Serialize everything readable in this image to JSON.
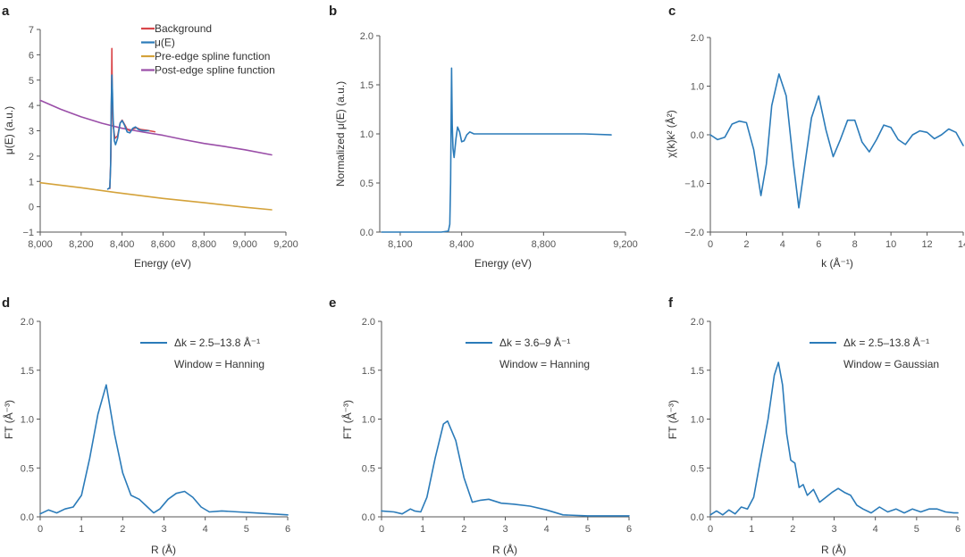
{
  "figure": {
    "colors": {
      "blue": "#2b7bb9",
      "red": "#d9464a",
      "orange": "#d4a23a",
      "purple": "#9a4ea8"
    }
  },
  "chart_data": [
    {
      "id": "a",
      "letter": "a",
      "type": "line",
      "xlabel": "Energy (eV)",
      "ylabel": "μ(E) (a.u.)",
      "xlim": [
        8000,
        9200
      ],
      "ylim": [
        -1,
        7
      ],
      "xticks": [
        8000,
        8200,
        8400,
        8600,
        8800,
        9000,
        9200
      ],
      "xtick_labels": [
        "8,000",
        "8,200",
        "8,400",
        "8,600",
        "8,800",
        "9,000",
        "9,200"
      ],
      "yticks": [
        -1,
        0,
        1,
        2,
        3,
        4,
        5,
        6,
        7
      ],
      "ytick_labels": [
        "−1",
        "0",
        "1",
        "2",
        "3",
        "4",
        "5",
        "6",
        "7"
      ],
      "legend": [
        {
          "label": "Background",
          "color": "#d9464a"
        },
        {
          "label": "μ(E)",
          "color": "#2b7bb9"
        },
        {
          "label": "Pre-edge spline function",
          "color": "#d4a23a"
        },
        {
          "label": "Post-edge spline function",
          "color": "#9a4ea8"
        }
      ],
      "series": [
        {
          "name": "Pre-edge spline function",
          "color": "#d4a23a",
          "points": [
            [
              8000,
              0.95
            ],
            [
              8200,
              0.75
            ],
            [
              8400,
              0.53
            ],
            [
              8600,
              0.33
            ],
            [
              8800,
              0.16
            ],
            [
              9000,
              -0.02
            ],
            [
              9130,
              -0.12
            ]
          ]
        },
        {
          "name": "Post-edge spline function",
          "color": "#9a4ea8",
          "points": [
            [
              8000,
              4.2
            ],
            [
              8100,
              3.85
            ],
            [
              8200,
              3.55
            ],
            [
              8300,
              3.3
            ],
            [
              8400,
              3.1
            ],
            [
              8500,
              2.95
            ],
            [
              8600,
              2.82
            ],
            [
              8700,
              2.65
            ],
            [
              8800,
              2.5
            ],
            [
              8900,
              2.38
            ],
            [
              9000,
              2.25
            ],
            [
              9130,
              2.05
            ]
          ]
        },
        {
          "name": "Background",
          "color": "#d9464a",
          "points": [
            [
              8340,
              0.72
            ],
            [
              8345,
              2.0
            ],
            [
              8348,
              4.5
            ],
            [
              8350,
              6.25
            ],
            [
              8352,
              4.2
            ],
            [
              8356,
              3.2
            ],
            [
              8365,
              2.7
            ],
            [
              8378,
              2.8
            ],
            [
              8390,
              3.3
            ],
            [
              8400,
              3.42
            ],
            [
              8412,
              3.25
            ],
            [
              8425,
              3.05
            ],
            [
              8440,
              3.0
            ],
            [
              8455,
              3.08
            ],
            [
              8470,
              3.12
            ],
            [
              8490,
              3.05
            ],
            [
              8520,
              3.02
            ],
            [
              8560,
              2.96
            ]
          ]
        },
        {
          "name": "μ(E)",
          "color": "#2b7bb9",
          "points": [
            [
              8330,
              0.7
            ],
            [
              8340,
              0.75
            ],
            [
              8344,
              1.6
            ],
            [
              8347,
              4.0
            ],
            [
              8350,
              5.2
            ],
            [
              8353,
              4.5
            ],
            [
              8356,
              3.5
            ],
            [
              8362,
              2.6
            ],
            [
              8368,
              2.45
            ],
            [
              8378,
              2.7
            ],
            [
              8390,
              3.3
            ],
            [
              8400,
              3.4
            ],
            [
              8412,
              3.22
            ],
            [
              8425,
              2.95
            ],
            [
              8438,
              2.92
            ],
            [
              8452,
              3.1
            ],
            [
              8465,
              3.15
            ],
            [
              8480,
              3.05
            ],
            [
              8500,
              3.0
            ],
            [
              8530,
              3.0
            ]
          ]
        }
      ]
    },
    {
      "id": "b",
      "letter": "b",
      "type": "line",
      "xlabel": "Energy (eV)",
      "ylabel": "Normalized μ(E) (a.u.)",
      "xlim": [
        8000,
        9200
      ],
      "ylim": [
        0,
        2.0
      ],
      "xticks": [
        8100,
        8400,
        8800,
        9200
      ],
      "xtick_labels": [
        "8,100",
        "8,400",
        "8,800",
        "9,200"
      ],
      "yticks": [
        0,
        0.5,
        1.0,
        1.5,
        2.0
      ],
      "ytick_labels": [
        "0.0",
        "0.5",
        "1.0",
        "1.5",
        "2.0"
      ],
      "series": [
        {
          "name": "Normalized μ(E)",
          "color": "#2b7bb9",
          "points": [
            [
              8010,
              0.0
            ],
            [
              8300,
              0.0
            ],
            [
              8335,
              0.01
            ],
            [
              8342,
              0.08
            ],
            [
              8346,
              0.5
            ],
            [
              8349,
              1.25
            ],
            [
              8351,
              1.67
            ],
            [
              8354,
              1.1
            ],
            [
              8358,
              0.85
            ],
            [
              8363,
              0.76
            ],
            [
              8372,
              0.95
            ],
            [
              8380,
              1.07
            ],
            [
              8390,
              1.02
            ],
            [
              8400,
              0.92
            ],
            [
              8412,
              0.93
            ],
            [
              8425,
              0.99
            ],
            [
              8440,
              1.02
            ],
            [
              8460,
              1.0
            ],
            [
              8500,
              1.0
            ],
            [
              8600,
              1.0
            ],
            [
              8800,
              1.0
            ],
            [
              9000,
              1.0
            ],
            [
              9130,
              0.99
            ]
          ]
        }
      ]
    },
    {
      "id": "c",
      "letter": "c",
      "type": "line",
      "xlabel": "k (Å⁻¹)",
      "ylabel": "χ(k)k² (Å²)",
      "xlim": [
        0,
        14
      ],
      "ylim": [
        -2.0,
        2.0
      ],
      "xticks": [
        0,
        2,
        4,
        6,
        8,
        10,
        12,
        14
      ],
      "xtick_labels": [
        "0",
        "2",
        "4",
        "6",
        "8",
        "10",
        "12",
        "14"
      ],
      "yticks": [
        -2.0,
        -1.0,
        0,
        1.0,
        2.0
      ],
      "ytick_labels": [
        "−2.0",
        "−1.0",
        "0.0",
        "1.0",
        "2.0"
      ],
      "series": [
        {
          "name": "χ(k)k²",
          "color": "#2b7bb9",
          "points": [
            [
              0,
              0.0
            ],
            [
              0.4,
              -0.1
            ],
            [
              0.8,
              -0.05
            ],
            [
              1.2,
              0.22
            ],
            [
              1.6,
              0.28
            ],
            [
              2.0,
              0.25
            ],
            [
              2.4,
              -0.3
            ],
            [
              2.8,
              -1.25
            ],
            [
              3.1,
              -0.6
            ],
            [
              3.4,
              0.6
            ],
            [
              3.8,
              1.25
            ],
            [
              4.2,
              0.8
            ],
            [
              4.6,
              -0.6
            ],
            [
              4.9,
              -1.5
            ],
            [
              5.2,
              -0.7
            ],
            [
              5.6,
              0.35
            ],
            [
              6.0,
              0.8
            ],
            [
              6.4,
              0.1
            ],
            [
              6.8,
              -0.45
            ],
            [
              7.2,
              -0.1
            ],
            [
              7.6,
              0.3
            ],
            [
              8.0,
              0.3
            ],
            [
              8.4,
              -0.15
            ],
            [
              8.8,
              -0.35
            ],
            [
              9.2,
              -0.1
            ],
            [
              9.6,
              0.2
            ],
            [
              10.0,
              0.15
            ],
            [
              10.4,
              -0.1
            ],
            [
              10.8,
              -0.2
            ],
            [
              11.2,
              0.0
            ],
            [
              11.6,
              0.08
            ],
            [
              12.0,
              0.05
            ],
            [
              12.4,
              -0.08
            ],
            [
              12.8,
              0.0
            ],
            [
              13.2,
              0.12
            ],
            [
              13.6,
              0.05
            ],
            [
              14.0,
              -0.22
            ]
          ]
        }
      ]
    },
    {
      "id": "d",
      "letter": "d",
      "type": "line",
      "xlabel": "R (Å)",
      "ylabel": "FT (Å⁻³)",
      "xlim": [
        0,
        6
      ],
      "ylim": [
        0,
        2.0
      ],
      "xticks": [
        0,
        1,
        2,
        3,
        4,
        5,
        6
      ],
      "xtick_labels": [
        "0",
        "1",
        "2",
        "3",
        "4",
        "5",
        "6"
      ],
      "yticks": [
        0,
        0.5,
        1.0,
        1.5,
        2.0
      ],
      "ytick_labels": [
        "0.0",
        "0.5",
        "1.0",
        "1.5",
        "2.0"
      ],
      "legend_lines": [
        "Δk = 2.5–13.8 Å⁻¹",
        "Window = Hanning"
      ],
      "series": [
        {
          "name": "FT",
          "color": "#2b7bb9",
          "points": [
            [
              0,
              0.03
            ],
            [
              0.2,
              0.07
            ],
            [
              0.4,
              0.04
            ],
            [
              0.6,
              0.08
            ],
            [
              0.8,
              0.1
            ],
            [
              1.0,
              0.22
            ],
            [
              1.2,
              0.6
            ],
            [
              1.4,
              1.05
            ],
            [
              1.6,
              1.35
            ],
            [
              1.8,
              0.85
            ],
            [
              2.0,
              0.45
            ],
            [
              2.2,
              0.22
            ],
            [
              2.4,
              0.18
            ],
            [
              2.6,
              0.1
            ],
            [
              2.75,
              0.04
            ],
            [
              2.9,
              0.08
            ],
            [
              3.1,
              0.18
            ],
            [
              3.3,
              0.24
            ],
            [
              3.5,
              0.26
            ],
            [
              3.7,
              0.2
            ],
            [
              3.9,
              0.1
            ],
            [
              4.1,
              0.05
            ],
            [
              4.4,
              0.06
            ],
            [
              4.8,
              0.05
            ],
            [
              5.2,
              0.04
            ],
            [
              5.6,
              0.03
            ],
            [
              6.0,
              0.02
            ]
          ]
        }
      ]
    },
    {
      "id": "e",
      "letter": "e",
      "type": "line",
      "xlabel": "R (Å)",
      "ylabel": "FT (Å⁻³)",
      "xlim": [
        0,
        6
      ],
      "ylim": [
        0,
        2.0
      ],
      "xticks": [
        0,
        1,
        2,
        3,
        4,
        5,
        6
      ],
      "xtick_labels": [
        "0",
        "1",
        "2",
        "3",
        "4",
        "5",
        "6"
      ],
      "yticks": [
        0,
        0.5,
        1.0,
        1.5,
        2.0
      ],
      "ytick_labels": [
        "0.0",
        "0.5",
        "1.0",
        "1.5",
        "2.0"
      ],
      "legend_lines": [
        "Δk = 3.6–9 Å⁻¹",
        "Window = Hanning"
      ],
      "series": [
        {
          "name": "FT",
          "color": "#2b7bb9",
          "points": [
            [
              0,
              0.06
            ],
            [
              0.3,
              0.05
            ],
            [
              0.5,
              0.03
            ],
            [
              0.7,
              0.08
            ],
            [
              0.8,
              0.06
            ],
            [
              0.95,
              0.05
            ],
            [
              1.1,
              0.2
            ],
            [
              1.3,
              0.6
            ],
            [
              1.5,
              0.95
            ],
            [
              1.6,
              0.98
            ],
            [
              1.8,
              0.78
            ],
            [
              2.0,
              0.4
            ],
            [
              2.2,
              0.15
            ],
            [
              2.4,
              0.17
            ],
            [
              2.6,
              0.18
            ],
            [
              2.9,
              0.14
            ],
            [
              3.2,
              0.13
            ],
            [
              3.6,
              0.11
            ],
            [
              4.0,
              0.07
            ],
            [
              4.4,
              0.02
            ],
            [
              5.0,
              0.01
            ],
            [
              6.0,
              0.01
            ]
          ]
        }
      ]
    },
    {
      "id": "f",
      "letter": "f",
      "type": "line",
      "xlabel": "R (Å)",
      "ylabel": "FT (Å⁻³)",
      "xlim": [
        0,
        6
      ],
      "ylim": [
        0,
        2.0
      ],
      "xticks": [
        0,
        1,
        2,
        3,
        4,
        5,
        6
      ],
      "xtick_labels": [
        "0",
        "1",
        "2",
        "3",
        "4",
        "5",
        "6"
      ],
      "yticks": [
        0,
        0.5,
        1.0,
        1.5,
        2.0
      ],
      "ytick_labels": [
        "0.0",
        "0.5",
        "1.0",
        "1.5",
        "2.0"
      ],
      "legend_lines": [
        "Δk = 2.5–13.8 Å⁻¹",
        "Window = Gaussian"
      ],
      "series": [
        {
          "name": "FT",
          "color": "#2b7bb9",
          "points": [
            [
              0,
              0.02
            ],
            [
              0.15,
              0.06
            ],
            [
              0.3,
              0.02
            ],
            [
              0.45,
              0.07
            ],
            [
              0.6,
              0.03
            ],
            [
              0.75,
              0.1
            ],
            [
              0.9,
              0.08
            ],
            [
              1.05,
              0.2
            ],
            [
              1.2,
              0.55
            ],
            [
              1.4,
              1.0
            ],
            [
              1.55,
              1.45
            ],
            [
              1.65,
              1.58
            ],
            [
              1.75,
              1.35
            ],
            [
              1.85,
              0.85
            ],
            [
              1.95,
              0.58
            ],
            [
              2.05,
              0.55
            ],
            [
              2.15,
              0.3
            ],
            [
              2.25,
              0.33
            ],
            [
              2.35,
              0.22
            ],
            [
              2.5,
              0.28
            ],
            [
              2.65,
              0.15
            ],
            [
              2.8,
              0.2
            ],
            [
              2.95,
              0.25
            ],
            [
              3.1,
              0.29
            ],
            [
              3.25,
              0.25
            ],
            [
              3.4,
              0.22
            ],
            [
              3.55,
              0.12
            ],
            [
              3.7,
              0.08
            ],
            [
              3.9,
              0.04
            ],
            [
              4.1,
              0.1
            ],
            [
              4.3,
              0.05
            ],
            [
              4.5,
              0.08
            ],
            [
              4.7,
              0.04
            ],
            [
              4.9,
              0.08
            ],
            [
              5.1,
              0.05
            ],
            [
              5.3,
              0.08
            ],
            [
              5.5,
              0.08
            ],
            [
              5.7,
              0.05
            ],
            [
              5.9,
              0.04
            ],
            [
              6.0,
              0.04
            ]
          ]
        }
      ]
    }
  ]
}
